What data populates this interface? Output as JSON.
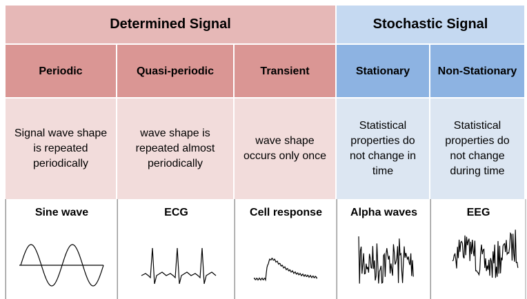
{
  "groups": [
    {
      "title": "Determined Signal"
    },
    {
      "title": "Stochastic Signal"
    }
  ],
  "columns": [
    {
      "name": "Periodic",
      "description": "Signal wave shape is repeated periodically",
      "example": "Sine wave"
    },
    {
      "name": "Quasi-periodic",
      "description": "wave shape is repeated almost periodically",
      "example": "ECG"
    },
    {
      "name": "Transient",
      "description": "wave shape occurs only once",
      "example": "Cell response"
    },
    {
      "name": "Stationary",
      "description": "Statistical properties do not change in time",
      "example": "Alpha waves"
    },
    {
      "name": "Non-Stationary",
      "description": "Statistical properties do not change during time",
      "example": "EEG"
    }
  ]
}
